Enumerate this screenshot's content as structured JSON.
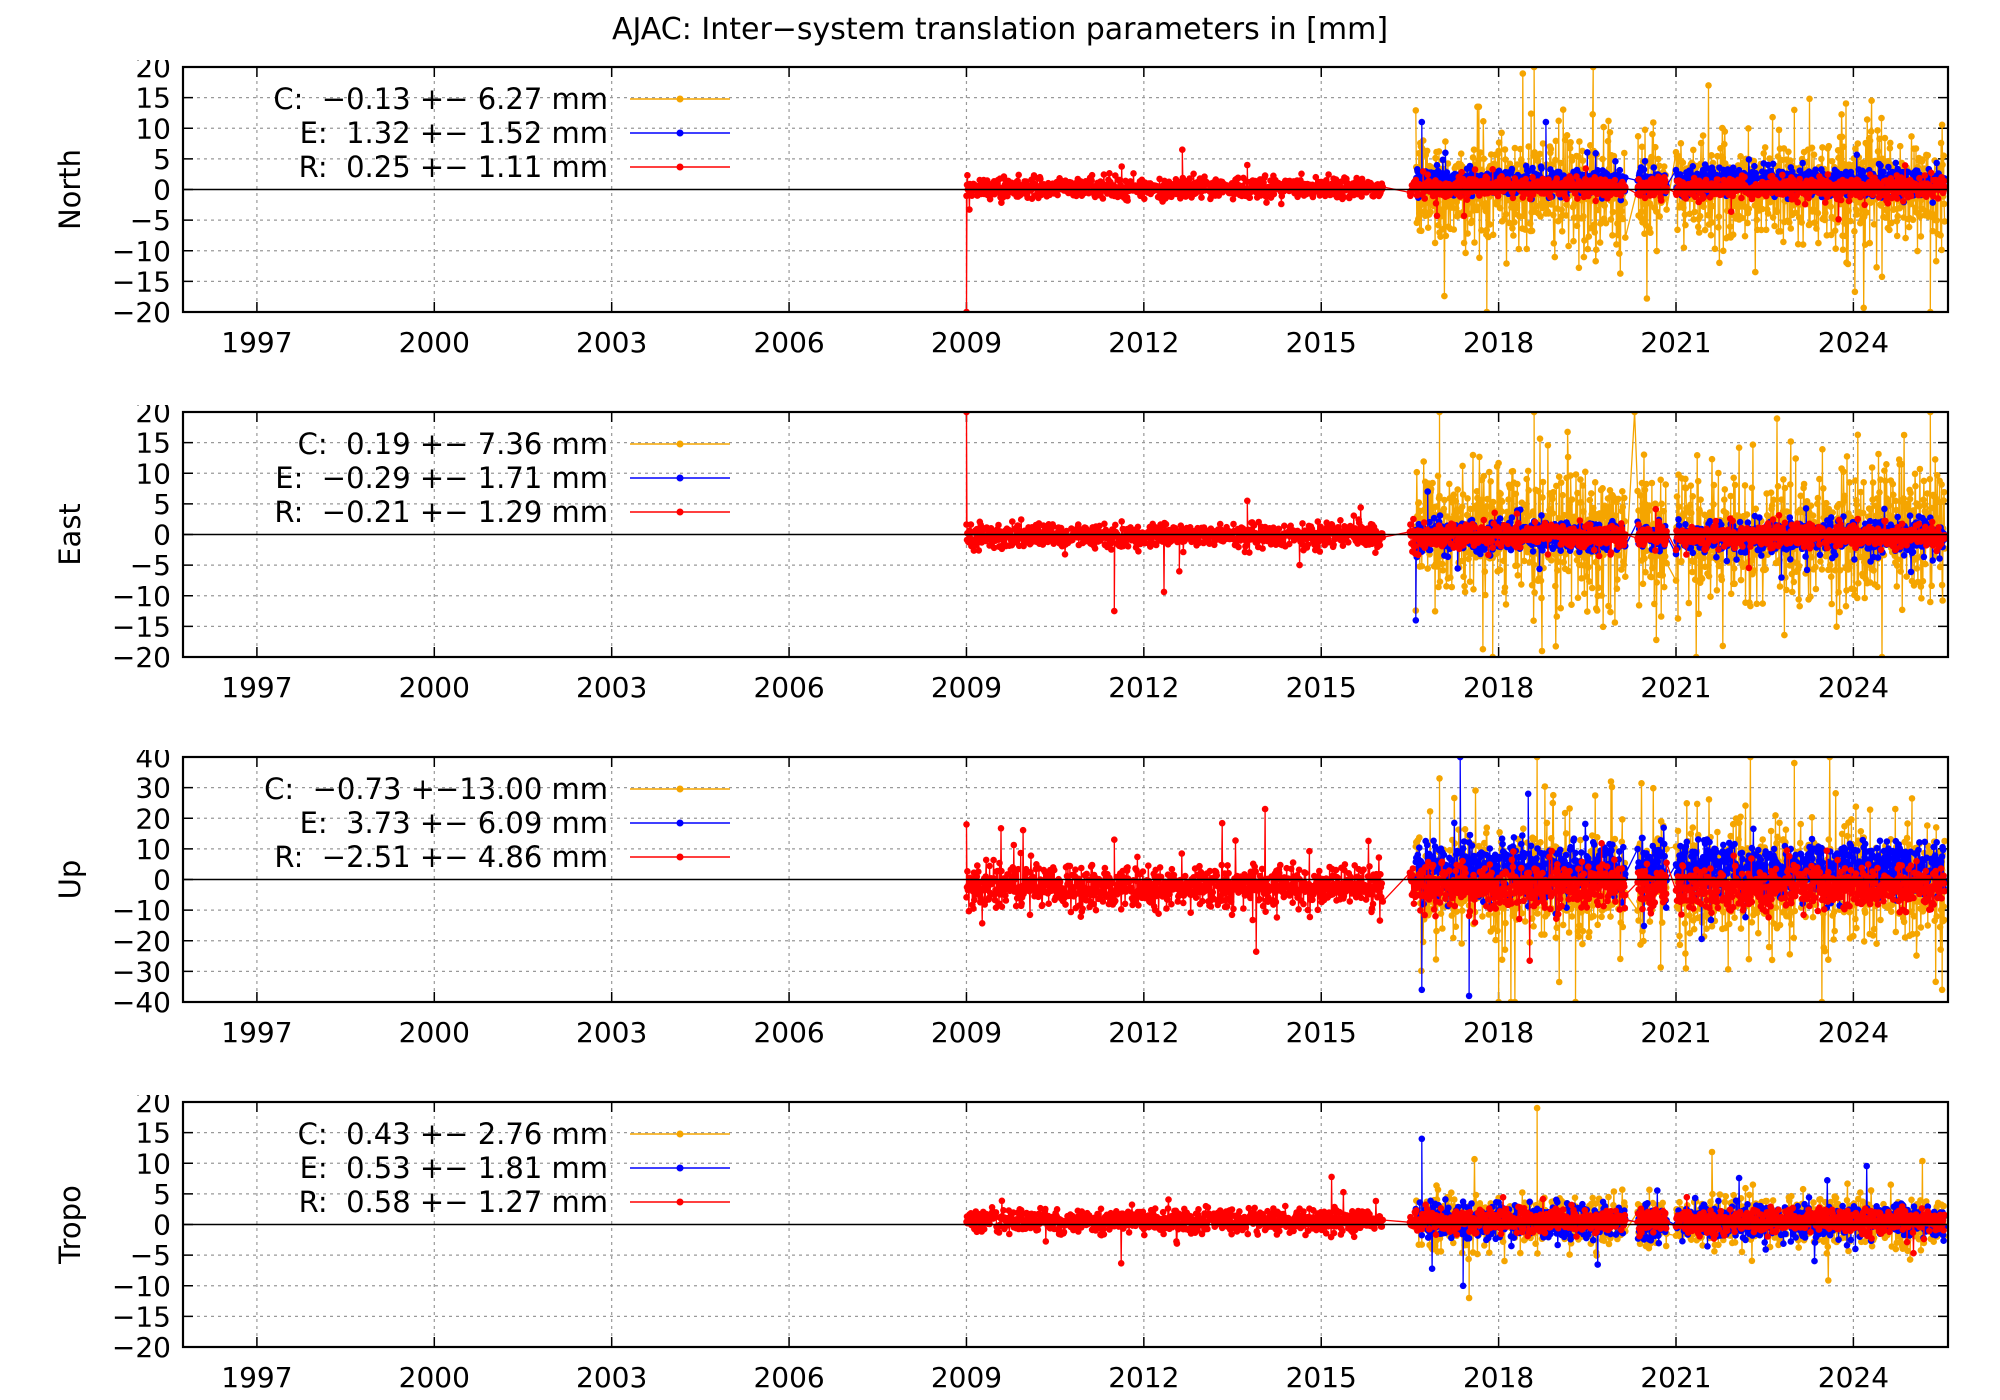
{
  "title": "AJAC: Inter−system translation parameters in [mm]",
  "colors": {
    "C": "#f5a500",
    "E": "#0000ff",
    "R": "#ff0000",
    "frame": "#000000",
    "grid": "#999999"
  },
  "chart_data": [
    {
      "type": "scatter",
      "ylabel": "North",
      "xlim": [
        1995.75,
        2025.6
      ],
      "ylim": [
        -20,
        20
      ],
      "xticks": [
        "1997",
        "2000",
        "2003",
        "2006",
        "2009",
        "2012",
        "2015",
        "2018",
        "2021",
        "2024"
      ],
      "yticks": [
        "20",
        "15",
        "10",
        "5",
        "0",
        "−5",
        "−10",
        "−15",
        "−20"
      ],
      "grid": true,
      "legend": "top-left",
      "series": [
        {
          "key": "C",
          "name": "C:  −0.13 +− 6.27 mm",
          "mean": -0.13,
          "std": 6.27,
          "spans": [
            [
              2016.6,
              2020.15
            ],
            [
              2020.35,
              2020.85
            ],
            [
              2021.0,
              2025.55
            ]
          ],
          "outliers": [
            [
              2017.8,
              -20
            ],
            [
              2018.6,
              20
            ],
            [
              2019.6,
              20
            ],
            [
              2023.0,
              13
            ],
            [
              2025.3,
              -20
            ]
          ]
        },
        {
          "key": "E",
          "name": "E:  1.32 +− 1.52 mm",
          "mean": 1.32,
          "std": 1.52,
          "spans": [
            [
              2016.6,
              2020.15
            ],
            [
              2020.35,
              2020.85
            ],
            [
              2021.0,
              2025.55
            ]
          ],
          "outliers": [
            [
              2016.7,
              11
            ],
            [
              2017.1,
              6
            ],
            [
              2018.8,
              11
            ]
          ]
        },
        {
          "key": "R",
          "name": "R:  0.25 +− 1.11 mm",
          "mean": 0.25,
          "std": 1.11,
          "spans": [
            [
              2009.0,
              2016.05
            ],
            [
              2016.5,
              2020.15
            ],
            [
              2020.35,
              2020.85
            ],
            [
              2021.0,
              2025.55
            ]
          ],
          "outliers": [
            [
              2009.0,
              -20
            ],
            [
              2012.65,
              6.5
            ],
            [
              2013.75,
              4
            ]
          ]
        }
      ]
    },
    {
      "type": "scatter",
      "ylabel": "East",
      "xlim": [
        1995.75,
        2025.6
      ],
      "ylim": [
        -20,
        20
      ],
      "xticks": [
        "1997",
        "2000",
        "2003",
        "2006",
        "2009",
        "2012",
        "2015",
        "2018",
        "2021",
        "2024"
      ],
      "yticks": [
        "20",
        "15",
        "10",
        "5",
        "0",
        "−5",
        "−10",
        "−15",
        "−20"
      ],
      "grid": true,
      "legend": "top-left",
      "series": [
        {
          "key": "C",
          "name": "C:  0.19 +− 7.36 mm",
          "mean": 0.19,
          "std": 7.36,
          "spans": [
            [
              2016.6,
              2020.15
            ],
            [
              2020.35,
              2020.85
            ],
            [
              2021.0,
              2025.55
            ]
          ],
          "outliers": [
            [
              2017.0,
              20
            ],
            [
              2017.9,
              -20
            ],
            [
              2018.6,
              20
            ],
            [
              2020.3,
              20
            ],
            [
              2025.3,
              20
            ]
          ]
        },
        {
          "key": "E",
          "name": "E:  −0.29 +− 1.71 mm",
          "mean": -0.29,
          "std": 1.71,
          "spans": [
            [
              2016.6,
              2020.15
            ],
            [
              2020.35,
              2020.85
            ],
            [
              2021.0,
              2025.55
            ]
          ],
          "outliers": [
            [
              2016.6,
              -14
            ],
            [
              2016.8,
              7
            ]
          ]
        },
        {
          "key": "R",
          "name": "R:  −0.21 +− 1.29 mm",
          "mean": -0.21,
          "std": 1.29,
          "spans": [
            [
              2009.0,
              2016.05
            ],
            [
              2016.5,
              2020.15
            ],
            [
              2020.35,
              2020.85
            ],
            [
              2021.0,
              2025.55
            ]
          ],
          "outliers": [
            [
              2009.0,
              20
            ],
            [
              2011.5,
              -12.5
            ],
            [
              2013.75,
              5.5
            ],
            [
              2012.6,
              -6
            ]
          ]
        }
      ]
    },
    {
      "type": "scatter",
      "ylabel": "Up",
      "xlim": [
        1995.75,
        2025.6
      ],
      "ylim": [
        -40,
        40
      ],
      "xticks": [
        "1997",
        "2000",
        "2003",
        "2006",
        "2009",
        "2012",
        "2015",
        "2018",
        "2021",
        "2024"
      ],
      "yticks": [
        "40",
        "30",
        "20",
        "10",
        "0",
        "−10",
        "−20",
        "−30",
        "−40"
      ],
      "grid": true,
      "legend": "top-left",
      "series": [
        {
          "key": "C",
          "name": "C:  −0.73 +−13.00 mm",
          "mean": -0.73,
          "std": 13.0,
          "spans": [
            [
              2016.6,
              2020.15
            ],
            [
              2020.35,
              2020.85
            ],
            [
              2021.0,
              2025.55
            ]
          ],
          "outliers": [
            [
              2017.0,
              33
            ],
            [
              2018.0,
              -40
            ],
            [
              2019.3,
              -40
            ],
            [
              2023.0,
              38
            ],
            [
              2025.5,
              -36
            ]
          ]
        },
        {
          "key": "E",
          "name": "E:  3.73 +− 6.09 mm",
          "mean": 3.73,
          "std": 6.09,
          "spans": [
            [
              2016.6,
              2020.15
            ],
            [
              2020.35,
              2020.85
            ],
            [
              2021.0,
              2025.55
            ]
          ],
          "outliers": [
            [
              2016.7,
              -36
            ],
            [
              2017.35,
              40
            ],
            [
              2017.5,
              -38
            ],
            [
              2018.5,
              28
            ]
          ]
        },
        {
          "key": "R",
          "name": "R:  −2.51 +− 4.86 mm",
          "mean": -2.51,
          "std": 4.86,
          "spans": [
            [
              2009.0,
              2016.05
            ],
            [
              2016.5,
              2020.15
            ],
            [
              2020.35,
              2020.85
            ],
            [
              2021.0,
              2025.55
            ]
          ],
          "outliers": [
            [
              2009.0,
              18
            ],
            [
              2011.5,
              13
            ]
          ]
        }
      ]
    },
    {
      "type": "scatter",
      "ylabel": "Tropo",
      "xlim": [
        1995.75,
        2025.6
      ],
      "ylim": [
        -20,
        20
      ],
      "xticks": [
        "1997",
        "2000",
        "2003",
        "2006",
        "2009",
        "2012",
        "2015",
        "2018",
        "2021",
        "2024"
      ],
      "yticks": [
        "20",
        "15",
        "10",
        "5",
        "0",
        "−5",
        "−10",
        "−15",
        "−20"
      ],
      "grid": true,
      "legend": "top-left",
      "series": [
        {
          "key": "C",
          "name": "C:  0.43 +− 2.76 mm",
          "mean": 0.43,
          "std": 2.76,
          "spans": [
            [
              2016.6,
              2020.15
            ],
            [
              2020.35,
              2020.85
            ],
            [
              2021.0,
              2025.55
            ]
          ],
          "outliers": [
            [
              2018.65,
              19
            ],
            [
              2017.5,
              -12
            ]
          ]
        },
        {
          "key": "E",
          "name": "E:  0.53 +− 1.81 mm",
          "mean": 0.53,
          "std": 1.81,
          "spans": [
            [
              2016.6,
              2020.15
            ],
            [
              2020.35,
              2020.85
            ],
            [
              2021.0,
              2025.55
            ]
          ],
          "outliers": [
            [
              2016.7,
              14
            ],
            [
              2017.4,
              -10
            ]
          ]
        },
        {
          "key": "R",
          "name": "R:  0.58 +− 1.27 mm",
          "mean": 0.58,
          "std": 1.27,
          "spans": [
            [
              2009.0,
              2016.05
            ],
            [
              2016.5,
              2020.15
            ],
            [
              2020.35,
              2020.85
            ],
            [
              2021.0,
              2025.55
            ]
          ],
          "outliers": []
        }
      ]
    }
  ]
}
